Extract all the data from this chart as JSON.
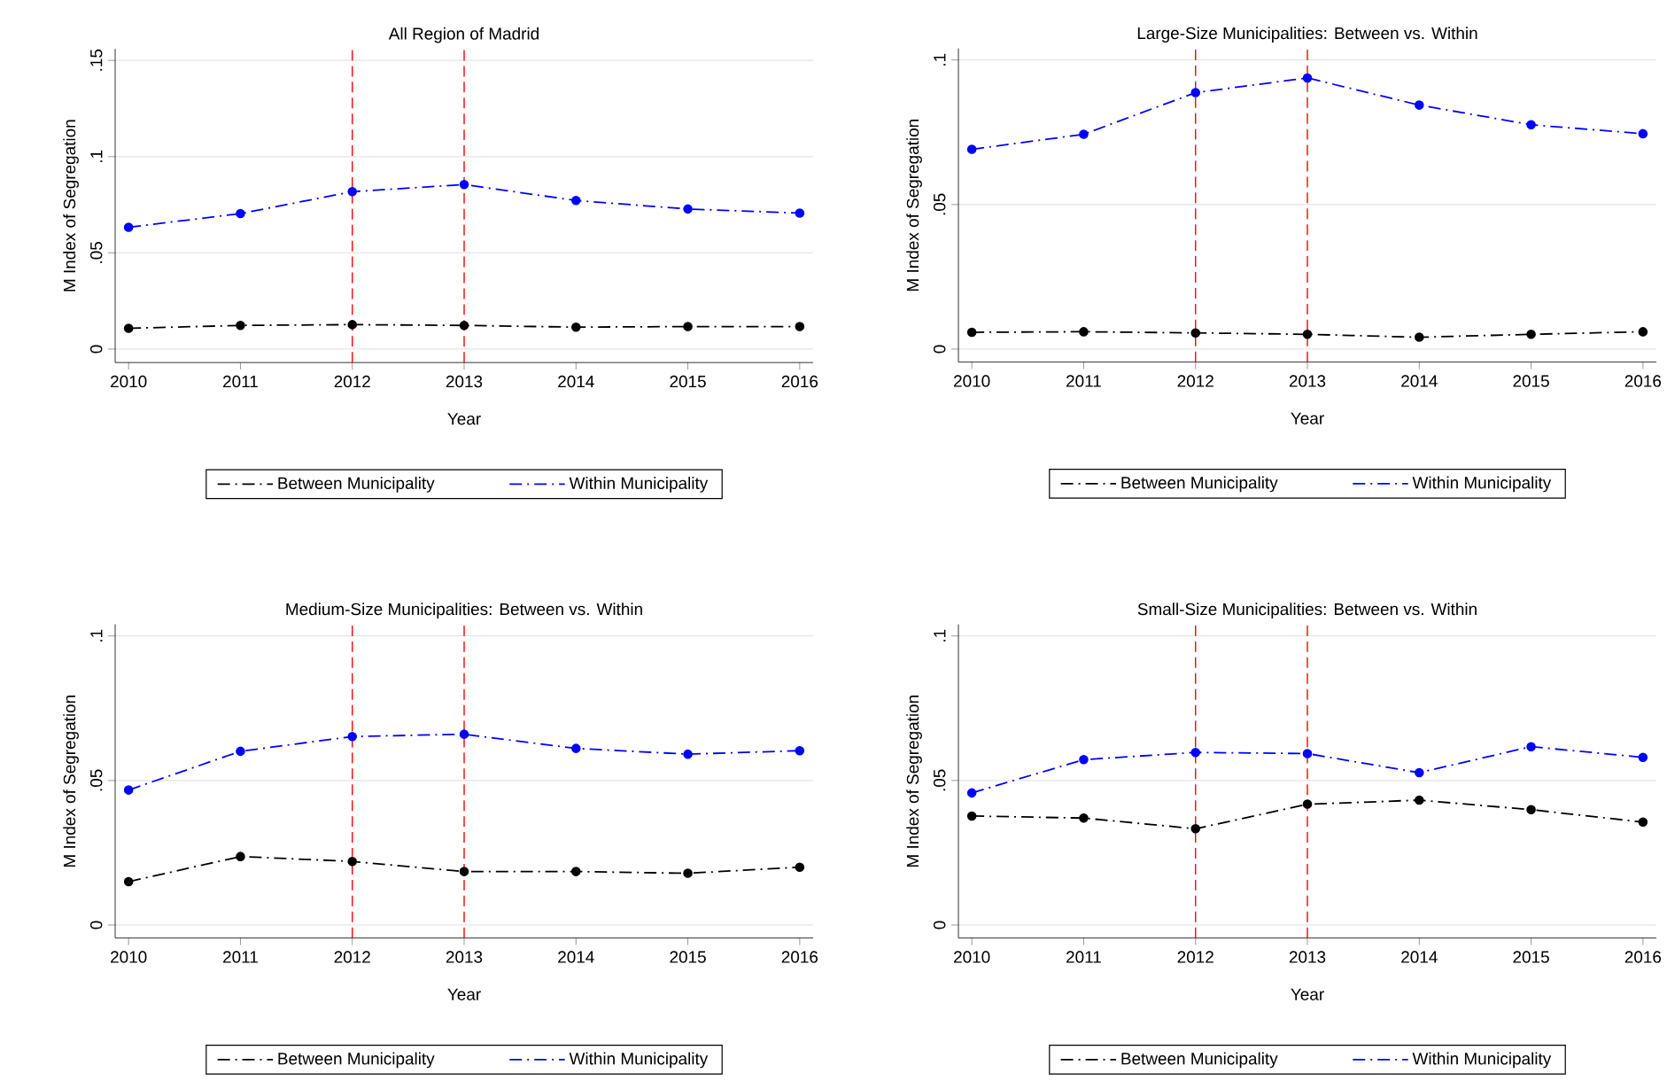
{
  "chart_data": [
    {
      "type": "line",
      "title": "All Region of Madrid",
      "xlabel": "Year",
      "ylabel": "M Index of Segregation",
      "x": [
        2010,
        2011,
        2012,
        2013,
        2014,
        2015,
        2016
      ],
      "series": [
        {
          "name": "Between Municipality",
          "color": "#000000",
          "values": [
            0.0108,
            0.0123,
            0.0127,
            0.0123,
            0.0114,
            0.0117,
            0.0117
          ]
        },
        {
          "name": "Within Municipality",
          "color": "#0000ff",
          "values": [
            0.0633,
            0.0704,
            0.0818,
            0.0855,
            0.0772,
            0.0728,
            0.0707
          ]
        }
      ],
      "xlim": [
        2009.88,
        2016.12
      ],
      "ylim": [
        -0.007,
        0.156
      ],
      "xticks": [
        2010,
        2011,
        2012,
        2013,
        2014,
        2015,
        2016
      ],
      "yticks": [
        {
          "value": 0,
          "label": "0"
        },
        {
          "value": 0.05,
          "label": ".05"
        },
        {
          "value": 0.1,
          "label": ".1"
        },
        {
          "value": 0.15,
          "label": ".15"
        }
      ],
      "ref_lines": [
        {
          "axis": "x",
          "value": 2012,
          "color": "#ff0000",
          "line_style": "dashed"
        },
        {
          "axis": "x",
          "value": 2013,
          "color": "#ff0000",
          "line_style": "dashed"
        }
      ],
      "grid": "y",
      "legend": "bottom",
      "marker": "circle",
      "line_style": "dashed"
    },
    {
      "type": "line",
      "title": "Large-Size Municipalities: Between vs. Within",
      "xlabel": "Year",
      "ylabel": "M Index of Segregation",
      "x": [
        2010,
        2011,
        2012,
        2013,
        2014,
        2015,
        2016
      ],
      "series": [
        {
          "name": "Between Municipality",
          "color": "#000000",
          "values": [
            0.0058,
            0.006,
            0.0056,
            0.0051,
            0.0041,
            0.0051,
            0.006
          ]
        },
        {
          "name": "Within Municipality",
          "color": "#0000ff",
          "values": [
            0.0691,
            0.0743,
            0.0887,
            0.0938,
            0.0844,
            0.0776,
            0.0745
          ]
        }
      ],
      "xlim": [
        2009.88,
        2016.12
      ],
      "ylim": [
        -0.0045,
        0.104
      ],
      "xticks": [
        2010,
        2011,
        2012,
        2013,
        2014,
        2015,
        2016
      ],
      "yticks": [
        {
          "value": 0,
          "label": "0"
        },
        {
          "value": 0.05,
          "label": ".05"
        },
        {
          "value": 0.1,
          "label": ".1"
        }
      ],
      "ref_lines": [
        {
          "axis": "x",
          "value": 2012,
          "color": "#ff0000",
          "line_style": "dashed"
        },
        {
          "axis": "x",
          "value": 2013,
          "color": "#ff0000",
          "line_style": "dashed"
        }
      ],
      "grid": "y",
      "legend": "bottom",
      "marker": "circle",
      "line_style": "dashed"
    },
    {
      "type": "line",
      "title": "Medium-Size Municipalities: Between vs. Within",
      "xlabel": "Year",
      "ylabel": "M Index of Segregation",
      "x": [
        2010,
        2011,
        2012,
        2013,
        2014,
        2015,
        2016
      ],
      "series": [
        {
          "name": "Between Municipality",
          "color": "#000000",
          "values": [
            0.015,
            0.0237,
            0.022,
            0.0185,
            0.0185,
            0.0179,
            0.02
          ]
        },
        {
          "name": "Within Municipality",
          "color": "#0000ff",
          "values": [
            0.0467,
            0.0601,
            0.0652,
            0.066,
            0.0611,
            0.0591,
            0.0603
          ]
        }
      ],
      "xlim": [
        2009.88,
        2016.12
      ],
      "ylim": [
        -0.0045,
        0.104
      ],
      "xticks": [
        2010,
        2011,
        2012,
        2013,
        2014,
        2015,
        2016
      ],
      "yticks": [
        {
          "value": 0,
          "label": "0"
        },
        {
          "value": 0.05,
          "label": ".05"
        },
        {
          "value": 0.1,
          "label": ".1"
        }
      ],
      "ref_lines": [
        {
          "axis": "x",
          "value": 2012,
          "color": "#ff0000",
          "line_style": "dashed"
        },
        {
          "axis": "x",
          "value": 2013,
          "color": "#ff0000",
          "line_style": "dashed"
        }
      ],
      "grid": "y",
      "legend": "bottom",
      "marker": "circle",
      "line_style": "dashed"
    },
    {
      "type": "line",
      "title": "Small-Size Municipalities: Between vs. Within",
      "xlabel": "Year",
      "ylabel": "M Index of Segregation",
      "x": [
        2010,
        2011,
        2012,
        2013,
        2014,
        2015,
        2016
      ],
      "series": [
        {
          "name": "Between Municipality",
          "color": "#000000",
          "values": [
            0.0377,
            0.037,
            0.0333,
            0.0418,
            0.0432,
            0.0399,
            0.0356
          ]
        },
        {
          "name": "Within Municipality",
          "color": "#0000ff",
          "values": [
            0.0457,
            0.0572,
            0.0597,
            0.0593,
            0.0527,
            0.0617,
            0.058
          ]
        }
      ],
      "xlim": [
        2009.88,
        2016.12
      ],
      "ylim": [
        -0.0045,
        0.104
      ],
      "xticks": [
        2010,
        2011,
        2012,
        2013,
        2014,
        2015,
        2016
      ],
      "yticks": [
        {
          "value": 0,
          "label": "0"
        },
        {
          "value": 0.05,
          "label": ".05"
        },
        {
          "value": 0.1,
          "label": ".1"
        }
      ],
      "ref_lines": [
        {
          "axis": "x",
          "value": 2012,
          "color": "#ff0000",
          "line_style": "dashed"
        },
        {
          "axis": "x",
          "value": 2013,
          "color": "#ff0000",
          "line_style": "dashed"
        }
      ],
      "grid": "y",
      "legend": "bottom",
      "marker": "circle",
      "line_style": "dashed"
    }
  ]
}
